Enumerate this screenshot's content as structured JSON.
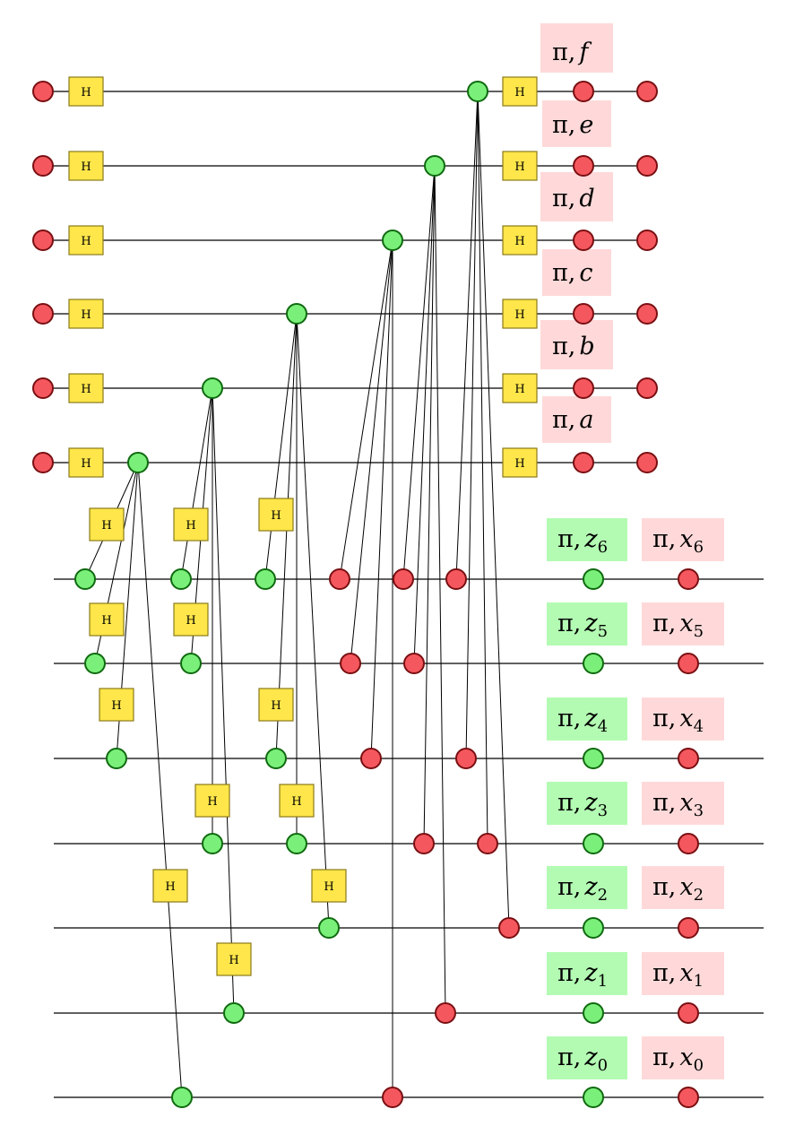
{
  "gate_label": "H",
  "phase_labels": {
    "qubit_f": {
      "pi": "π,",
      "var": "f",
      "sub": ""
    },
    "qubit_e": {
      "pi": "π,",
      "var": "e",
      "sub": ""
    },
    "qubit_d": {
      "pi": "π,",
      "var": "d",
      "sub": ""
    },
    "qubit_c": {
      "pi": "π,",
      "var": "c",
      "sub": ""
    },
    "qubit_b": {
      "pi": "π,",
      "var": "b",
      "sub": ""
    },
    "qubit_a": {
      "pi": "π,",
      "var": "a",
      "sub": ""
    },
    "z6": {
      "pi": "π,",
      "var": "z",
      "sub": "6"
    },
    "x6": {
      "pi": "π,",
      "var": "x",
      "sub": "6"
    },
    "z5": {
      "pi": "π,",
      "var": "z",
      "sub": "5"
    },
    "x5": {
      "pi": "π,",
      "var": "x",
      "sub": "5"
    },
    "z4": {
      "pi": "π,",
      "var": "z",
      "sub": "4"
    },
    "x4": {
      "pi": "π,",
      "var": "x",
      "sub": "4"
    },
    "z3": {
      "pi": "π,",
      "var": "z",
      "sub": "3"
    },
    "x3": {
      "pi": "π,",
      "var": "x",
      "sub": "3"
    },
    "z2": {
      "pi": "π,",
      "var": "z",
      "sub": "2"
    },
    "x2": {
      "pi": "π,",
      "var": "x",
      "sub": "2"
    },
    "z1": {
      "pi": "π,",
      "var": "z",
      "sub": "1"
    },
    "x1": {
      "pi": "π,",
      "var": "x",
      "sub": "1"
    },
    "z0": {
      "pi": "π,",
      "var": "z",
      "sub": "0"
    },
    "x0": {
      "pi": "π,",
      "var": "x",
      "sub": "0"
    }
  },
  "colors": {
    "red_spider": "#f4585e",
    "green_spider": "#7af07a",
    "hadamard": "#ffe64a",
    "x_label_bg": "#ffd9d9",
    "z_label_bg": "#b3fbb3"
  }
}
